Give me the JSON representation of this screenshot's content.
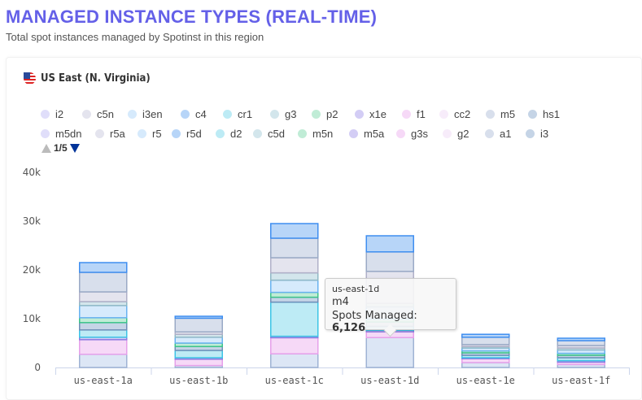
{
  "header": {
    "title": "MANAGED INSTANCE TYPES (REAL-TIME)",
    "subtitle": "Total spot instances managed by Spotinst in this region"
  },
  "region": {
    "name": "US East (N. Virginia)",
    "icon": "us-flag-icon"
  },
  "legend": {
    "rows": [
      [
        {
          "name": "i2",
          "color": "#e0defa"
        },
        {
          "name": "c5n",
          "color": "#e4e4ee"
        },
        {
          "name": "i3en",
          "color": "#d6eafc"
        },
        {
          "name": "c4",
          "color": "#b7d5f8"
        },
        {
          "name": "cr1",
          "color": "#bdebf5"
        },
        {
          "name": "g3",
          "color": "#d3e6ec"
        },
        {
          "name": "p2",
          "color": "#c0ecd6"
        },
        {
          "name": "x1e",
          "color": "#d3cdf5"
        },
        {
          "name": "f1",
          "color": "#f6d9f7"
        },
        {
          "name": "cc2",
          "color": "#f7ecfa"
        },
        {
          "name": "m5",
          "color": "#d8dfec"
        },
        {
          "name": "hs1",
          "color": "#c5d4e6"
        }
      ],
      [
        {
          "name": "m5dn",
          "color": "#e0defa"
        },
        {
          "name": "r5a",
          "color": "#e4e4ee"
        },
        {
          "name": "r5",
          "color": "#d6eafc"
        },
        {
          "name": "r5d",
          "color": "#b7d5f8"
        },
        {
          "name": "d2",
          "color": "#bdebf5"
        },
        {
          "name": "c5d",
          "color": "#d3e6ec"
        },
        {
          "name": "m5n",
          "color": "#c0ecd6"
        },
        {
          "name": "m5a",
          "color": "#d3cdf5"
        },
        {
          "name": "g3s",
          "color": "#f6d9f7"
        },
        {
          "name": "g2",
          "color": "#f7ecfa"
        },
        {
          "name": "a1",
          "color": "#d8dfec"
        },
        {
          "name": "i3",
          "color": "#c5d4e6"
        }
      ]
    ],
    "page": "1/5"
  },
  "tooltip": {
    "zone": "us-east-1d",
    "type": "m4",
    "label": "Spots Managed: ",
    "value": "6,126"
  },
  "chart_data": {
    "type": "bar",
    "stacked": true,
    "categories": [
      "us-east-1a",
      "us-east-1b",
      "us-east-1c",
      "us-east-1d",
      "us-east-1e",
      "us-east-1f"
    ],
    "ylim": [
      0,
      40000
    ],
    "yticks": [
      "0",
      "10k",
      "20k",
      "30k",
      "40k"
    ],
    "grid": false,
    "legend_position": "top",
    "series": [
      {
        "name": "m4",
        "color": "#dce6f5",
        "border": "#9fb3d4",
        "values": [
          2700,
          400,
          2800,
          6126,
          1000,
          600
        ]
      },
      {
        "name": "f1",
        "color": "#f6d9f7",
        "border": "#e6a0ea",
        "values": [
          3000,
          1300,
          3300,
          1200,
          800,
          500
        ]
      },
      {
        "name": "x1e",
        "color": "#d3cdf5",
        "border": "#8a7be0",
        "values": [
          500,
          300,
          300,
          300,
          200,
          300
        ]
      },
      {
        "name": "cr1",
        "color": "#bdebf5",
        "border": "#3cc4e6",
        "values": [
          1500,
          1500,
          7000,
          800,
          500,
          600
        ]
      },
      {
        "name": "hs1",
        "color": "#c5d4e6",
        "border": "#6e8fb8",
        "values": [
          1500,
          800,
          1000,
          900,
          500,
          500
        ]
      },
      {
        "name": "p2",
        "color": "#c0ecd6",
        "border": "#3cc48a",
        "values": [
          1000,
          700,
          1000,
          600,
          400,
          400
        ]
      },
      {
        "name": "i3en",
        "color": "#d6eafc",
        "border": "#68b2f0",
        "values": [
          2500,
          1200,
          2500,
          2500,
          600,
          700
        ]
      },
      {
        "name": "g3",
        "color": "#d3e6ec",
        "border": "#8fb8c6",
        "values": [
          800,
          600,
          1500,
          700,
          300,
          400
        ]
      },
      {
        "name": "c5n",
        "color": "#e4e4ee",
        "border": "#b0b0c8",
        "values": [
          2000,
          500,
          3100,
          6574,
          400,
          500
        ]
      },
      {
        "name": "m5",
        "color": "#d8dfec",
        "border": "#9aaac6",
        "values": [
          4000,
          2800,
          4000,
          4000,
          1500,
          1000
        ]
      },
      {
        "name": "c4",
        "color": "#b7d5f8",
        "border": "#3f8ef0",
        "values": [
          2000,
          400,
          3000,
          3300,
          600,
          500
        ]
      }
    ]
  }
}
